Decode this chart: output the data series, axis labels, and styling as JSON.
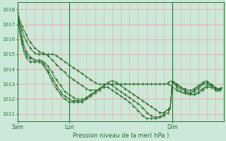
{
  "title": "Pression niveau de la mer( hPa )",
  "ylim": [
    1010.5,
    1018.5
  ],
  "yticks": [
    1011,
    1012,
    1013,
    1014,
    1015,
    1016,
    1017,
    1018
  ],
  "xtick_labels": [
    "Sam",
    "Lun",
    "Dim"
  ],
  "xtick_positions": [
    0,
    24,
    72
  ],
  "xlim": [
    0,
    96
  ],
  "background_color": "#cce8d8",
  "grid_color": "#f5a0a0",
  "line_color": "#2d6e2d",
  "marker": "+",
  "series": [
    [
      1017.8,
      1017.3,
      1016.9,
      1016.6,
      1016.3,
      1016.0,
      1015.8,
      1015.6,
      1015.4,
      1015.3,
      1015.2,
      1015.1,
      1015.1,
      1015.0,
      1015.0,
      1015.0,
      1015.0,
      1015.0,
      1014.9,
      1014.8,
      1014.7,
      1014.6,
      1014.5,
      1014.4,
      1014.3,
      1014.2,
      1014.1,
      1014.0,
      1013.9,
      1013.8,
      1013.7,
      1013.6,
      1013.5,
      1013.4,
      1013.3,
      1013.2,
      1013.1,
      1013.0,
      1013.0,
      1013.0,
      1013.0,
      1013.0,
      1013.0,
      1013.0,
      1013.0,
      1013.0,
      1013.0,
      1013.0,
      1013.0,
      1013.0,
      1013.0,
      1013.0,
      1013.0,
      1013.0,
      1013.0,
      1013.0,
      1013.0,
      1013.0,
      1013.0,
      1013.0,
      1013.0,
      1013.0,
      1013.0,
      1013.0,
      1013.0,
      1013.0,
      1013.0,
      1013.0,
      1013.0,
      1013.0,
      1013.1,
      1013.2,
      1013.2,
      1013.1,
      1013.0,
      1012.9,
      1012.8,
      1012.7,
      1012.7,
      1012.6,
      1012.6,
      1012.6,
      1012.7,
      1012.8,
      1012.9,
      1013.0,
      1013.1,
      1013.2,
      1013.2,
      1013.1,
      1013.0,
      1012.9,
      1012.8,
      1012.7,
      1012.6,
      1012.7
    ],
    [
      1017.8,
      1017.1,
      1016.6,
      1016.2,
      1015.9,
      1015.6,
      1015.4,
      1015.2,
      1015.1,
      1015.0,
      1015.0,
      1015.0,
      1015.0,
      1015.0,
      1014.9,
      1014.8,
      1014.6,
      1014.5,
      1014.3,
      1014.2,
      1014.0,
      1013.9,
      1013.8,
      1013.6,
      1013.5,
      1013.4,
      1013.3,
      1013.2,
      1013.1,
      1013.0,
      1012.9,
      1012.8,
      1012.7,
      1012.6,
      1012.6,
      1012.6,
      1012.6,
      1012.6,
      1012.7,
      1012.8,
      1012.9,
      1013.0,
      1013.0,
      1013.0,
      1013.0,
      1013.0,
      1013.0,
      1013.0,
      1013.0,
      1013.0,
      1013.0,
      1013.0,
      1013.0,
      1013.0,
      1013.0,
      1013.0,
      1013.0,
      1013.0,
      1013.0,
      1013.0,
      1013.0,
      1013.0,
      1013.0,
      1013.0,
      1013.0,
      1013.0,
      1013.0,
      1013.0,
      1013.0,
      1013.0,
      1013.0,
      1012.9,
      1012.8,
      1012.7,
      1012.6,
      1012.5,
      1012.5,
      1012.4,
      1012.4,
      1012.4,
      1012.4,
      1012.5,
      1012.6,
      1012.7,
      1012.8,
      1012.9,
      1013.0,
      1013.0,
      1013.0,
      1013.0,
      1012.9,
      1012.8,
      1012.7,
      1012.7,
      1012.7,
      1012.7
    ],
    [
      1017.8,
      1016.9,
      1016.2,
      1015.6,
      1015.2,
      1015.0,
      1014.8,
      1014.7,
      1014.6,
      1014.6,
      1014.6,
      1014.6,
      1014.5,
      1014.4,
      1014.2,
      1014.0,
      1013.8,
      1013.5,
      1013.3,
      1013.1,
      1012.9,
      1012.7,
      1012.5,
      1012.4,
      1012.3,
      1012.2,
      1012.1,
      1012.0,
      1012.0,
      1012.0,
      1012.0,
      1012.0,
      1012.1,
      1012.2,
      1012.3,
      1012.4,
      1012.5,
      1012.6,
      1012.7,
      1012.8,
      1012.9,
      1013.0,
      1013.1,
      1013.2,
      1013.2,
      1013.2,
      1013.1,
      1013.0,
      1012.9,
      1012.8,
      1012.7,
      1012.6,
      1012.5,
      1012.4,
      1012.3,
      1012.2,
      1012.1,
      1012.0,
      1011.9,
      1011.8,
      1011.7,
      1011.6,
      1011.5,
      1011.4,
      1011.3,
      1011.2,
      1011.1,
      1011.1,
      1011.1,
      1011.2,
      1011.3,
      1011.4,
      1013.2,
      1013.0,
      1012.8,
      1012.6,
      1012.5,
      1012.4,
      1012.4,
      1012.3,
      1012.3,
      1012.4,
      1012.5,
      1012.6,
      1012.7,
      1012.8,
      1013.0,
      1013.1,
      1013.1,
      1013.0,
      1012.9,
      1012.8,
      1012.7,
      1012.6,
      1012.7,
      1012.8
    ],
    [
      1017.8,
      1016.6,
      1015.9,
      1015.3,
      1015.0,
      1014.8,
      1014.7,
      1014.7,
      1014.6,
      1014.6,
      1014.6,
      1014.5,
      1014.4,
      1014.2,
      1013.9,
      1013.7,
      1013.4,
      1013.2,
      1012.9,
      1012.7,
      1012.5,
      1012.3,
      1012.2,
      1012.1,
      1012.0,
      1011.9,
      1011.9,
      1011.9,
      1011.9,
      1011.9,
      1011.9,
      1012.0,
      1012.1,
      1012.2,
      1012.3,
      1012.4,
      1012.5,
      1012.6,
      1012.7,
      1012.8,
      1012.9,
      1013.0,
      1013.0,
      1013.0,
      1012.9,
      1012.8,
      1012.7,
      1012.6,
      1012.5,
      1012.4,
      1012.3,
      1012.2,
      1012.1,
      1012.0,
      1011.9,
      1011.8,
      1011.7,
      1011.6,
      1011.4,
      1011.3,
      1011.1,
      1011.0,
      1010.9,
      1010.8,
      1010.8,
      1010.8,
      1010.8,
      1010.8,
      1010.9,
      1011.0,
      1011.1,
      1011.3,
      1013.2,
      1013.0,
      1012.9,
      1012.8,
      1012.7,
      1012.6,
      1012.5,
      1012.4,
      1012.4,
      1012.3,
      1012.3,
      1012.4,
      1012.5,
      1012.6,
      1012.7,
      1012.8,
      1012.9,
      1012.9,
      1012.9,
      1012.8,
      1012.7,
      1012.6,
      1012.7,
      1012.8
    ],
    [
      1017.8,
      1016.4,
      1015.7,
      1015.1,
      1014.8,
      1014.6,
      1014.5,
      1014.5,
      1014.5,
      1014.5,
      1014.5,
      1014.4,
      1014.3,
      1014.0,
      1013.8,
      1013.5,
      1013.2,
      1012.9,
      1012.7,
      1012.5,
      1012.3,
      1012.1,
      1012.0,
      1011.9,
      1011.8,
      1011.8,
      1011.8,
      1011.8,
      1011.8,
      1011.8,
      1011.8,
      1011.9,
      1012.0,
      1012.1,
      1012.2,
      1012.3,
      1012.4,
      1012.5,
      1012.6,
      1012.7,
      1012.8,
      1012.8,
      1012.8,
      1012.7,
      1012.6,
      1012.5,
      1012.4,
      1012.3,
      1012.2,
      1012.1,
      1012.0,
      1011.9,
      1011.8,
      1011.7,
      1011.5,
      1011.4,
      1011.2,
      1011.1,
      1010.9,
      1010.8,
      1010.7,
      1010.7,
      1010.7,
      1010.7,
      1010.7,
      1010.7,
      1010.8,
      1010.9,
      1011.0,
      1011.2,
      1011.3,
      1011.5,
      1013.2,
      1013.1,
      1013.0,
      1012.9,
      1012.8,
      1012.7,
      1012.6,
      1012.5,
      1012.4,
      1012.3,
      1012.3,
      1012.3,
      1012.4,
      1012.5,
      1012.6,
      1012.7,
      1012.8,
      1012.8,
      1012.8,
      1012.7,
      1012.6,
      1012.5,
      1012.6,
      1012.7
    ]
  ]
}
